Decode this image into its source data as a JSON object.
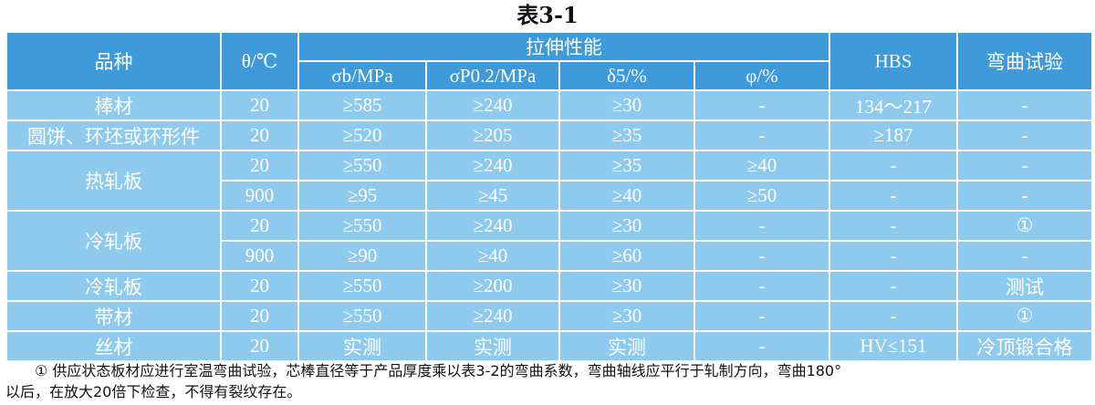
{
  "title": "表3-1",
  "headers": {
    "variety": "品种",
    "temp": "θ/℃",
    "tensile": "拉伸性能",
    "sigma_b": "σb/MPa",
    "sigma_p": "σP0.2/MPa",
    "delta": "δ5/%",
    "phi": "φ/%",
    "hbs": "HBS",
    "bend": "弯曲试验"
  },
  "rows": [
    {
      "product": "棒材",
      "temp": "20",
      "sb": "≥585",
      "sp": "≥240",
      "d5": "≥30",
      "phi": "-",
      "hbs": "134～217",
      "bend": "-"
    },
    {
      "product": "圆饼、环坯或环形件",
      "temp": "20",
      "sb": "≥520",
      "sp": "≥205",
      "d5": "≥35",
      "phi": "-",
      "hbs": "≥187",
      "bend": "-"
    },
    {
      "product": "热轧板",
      "temp": "20",
      "sb": "≥550",
      "sp": "≥240",
      "d5": "≥35",
      "phi": "≥40",
      "hbs": "-",
      "bend": "-"
    },
    {
      "product": "",
      "temp": "900",
      "sb": "≥95",
      "sp": "≥45",
      "d5": "≥40",
      "phi": "≥50",
      "hbs": "-",
      "bend": "-"
    },
    {
      "product": "冷轧板",
      "temp": "20",
      "sb": "≥550",
      "sp": "≥240",
      "d5": "≥30",
      "phi": "-",
      "hbs": "-",
      "bend": "①"
    },
    {
      "product": "",
      "temp": "900",
      "sb": "≥90",
      "sp": "≥40",
      "d5": "≥60",
      "phi": "-",
      "hbs": "-",
      "bend": "-"
    },
    {
      "product": "冷轧板",
      "temp": "20",
      "sb": "≥550",
      "sp": "≥200",
      "d5": "≥30",
      "phi": "-",
      "hbs": "-",
      "bend": "测试"
    },
    {
      "product": "带材",
      "temp": "20",
      "sb": "≥550",
      "sp": "≥240",
      "d5": "≥30",
      "phi": "-",
      "hbs": "-",
      "bend": "①"
    },
    {
      "product": "丝材",
      "temp": "20",
      "sb": "实测",
      "sp": "实测",
      "d5": "实测",
      "phi": "-",
      "hbs": "HV≤151",
      "bend": "冷顶锻合格"
    }
  ],
  "footnote": {
    "line1": "① 供应状态板材应进行室温弯曲试验，芯棒直径等于产品厚度乘以表3-2的弯曲系数，弯曲轴线应平行于轧制方向，弯曲180°",
    "line2": "以后，在放大20倍下检查，不得有裂纹存在。"
  }
}
